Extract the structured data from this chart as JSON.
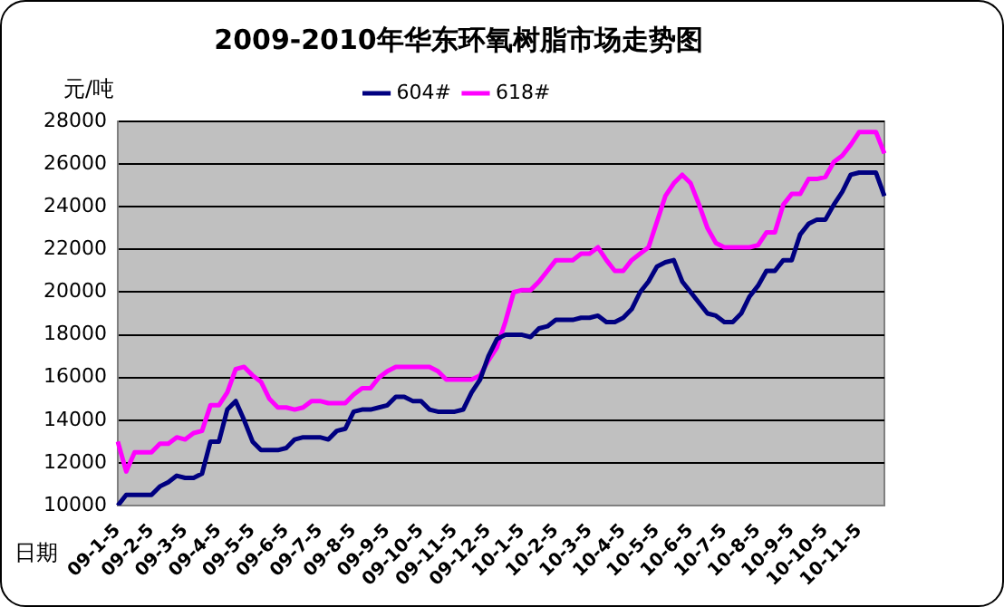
{
  "chart_data": {
    "type": "line",
    "title": "2009-2010年华东环氧树脂市场走势图",
    "ylabel": "元/吨",
    "xlabel": "日期",
    "categories": [
      "09-1-5",
      null,
      null,
      null,
      "09-2-5",
      null,
      null,
      null,
      "09-3-5",
      null,
      null,
      null,
      "09-4-5",
      null,
      null,
      null,
      "09-5-5",
      null,
      null,
      null,
      "09-6-5",
      null,
      null,
      null,
      "09-7-5",
      null,
      null,
      null,
      "09-8-5",
      null,
      null,
      null,
      "09-9-5",
      null,
      null,
      null,
      "09-10-5",
      null,
      null,
      null,
      "09-11-5",
      null,
      null,
      null,
      "09-12-5",
      null,
      null,
      null,
      "10-1-5",
      null,
      null,
      null,
      "10-2-5",
      null,
      null,
      null,
      "10-3-5",
      null,
      null,
      null,
      "10-4-5",
      null,
      null,
      null,
      "10-5-5",
      null,
      null,
      null,
      "10-6-5",
      null,
      null,
      null,
      "10-7-5",
      null,
      null,
      null,
      "10-8-5",
      null,
      null,
      null,
      "10-9-5",
      null,
      null,
      null,
      "10-10-5",
      null,
      null,
      null,
      "10-11-5",
      null,
      null,
      null
    ],
    "series": [
      {
        "name": "604#",
        "color": "#000080",
        "values": [
          10000,
          10500,
          10500,
          10500,
          10500,
          10900,
          11100,
          11400,
          11300,
          11300,
          11500,
          13000,
          13000,
          14500,
          14900,
          14000,
          13000,
          12600,
          12600,
          12600,
          12700,
          13100,
          13200,
          13200,
          13200,
          13100,
          13500,
          13600,
          14400,
          14500,
          14500,
          14600,
          14700,
          15100,
          15100,
          14900,
          14900,
          14500,
          14400,
          14400,
          14400,
          14500,
          15300,
          15900,
          17000,
          17800,
          18000,
          18000,
          18000,
          17900,
          18300,
          18400,
          18700,
          18700,
          18700,
          18800,
          18800,
          18900,
          18600,
          18600,
          18800,
          19200,
          20000,
          20500,
          21200,
          21400,
          21500,
          20500,
          20000,
          19500,
          19000,
          18900,
          18600,
          18600,
          19000,
          19800,
          20300,
          21000,
          21000,
          21500,
          21500,
          22700,
          23200,
          23400,
          23400,
          24100,
          24700,
          25500,
          25600,
          25600,
          25600,
          24500
        ]
      },
      {
        "name": "618#",
        "color": "#ff00ff",
        "values": [
          13000,
          11600,
          12500,
          12500,
          12500,
          12900,
          12900,
          13200,
          13100,
          13400,
          13500,
          14700,
          14700,
          15300,
          16400,
          16500,
          16100,
          15800,
          15000,
          14600,
          14600,
          14500,
          14600,
          14900,
          14900,
          14800,
          14800,
          14800,
          15200,
          15500,
          15500,
          16000,
          16300,
          16500,
          16500,
          16500,
          16500,
          16500,
          16300,
          15900,
          15900,
          15900,
          15900,
          16100,
          16800,
          17400,
          18600,
          20000,
          20100,
          20100,
          20500,
          21000,
          21500,
          21500,
          21500,
          21800,
          21800,
          22100,
          21500,
          21000,
          21000,
          21500,
          21800,
          22100,
          23300,
          24500,
          25100,
          25500,
          25100,
          24100,
          23000,
          22300,
          22100,
          22100,
          22100,
          22100,
          22200,
          22800,
          22800,
          24100,
          24600,
          24600,
          25300,
          25300,
          25400,
          26100,
          26400,
          26900,
          27500,
          27500,
          27500,
          26500
        ]
      }
    ],
    "ylim": [
      10000,
      28000
    ],
    "yticks": [
      10000,
      12000,
      14000,
      16000,
      18000,
      20000,
      22000,
      24000,
      26000,
      28000
    ],
    "grid": "y",
    "legend": "top",
    "marker": "none",
    "line_style": "solid"
  }
}
